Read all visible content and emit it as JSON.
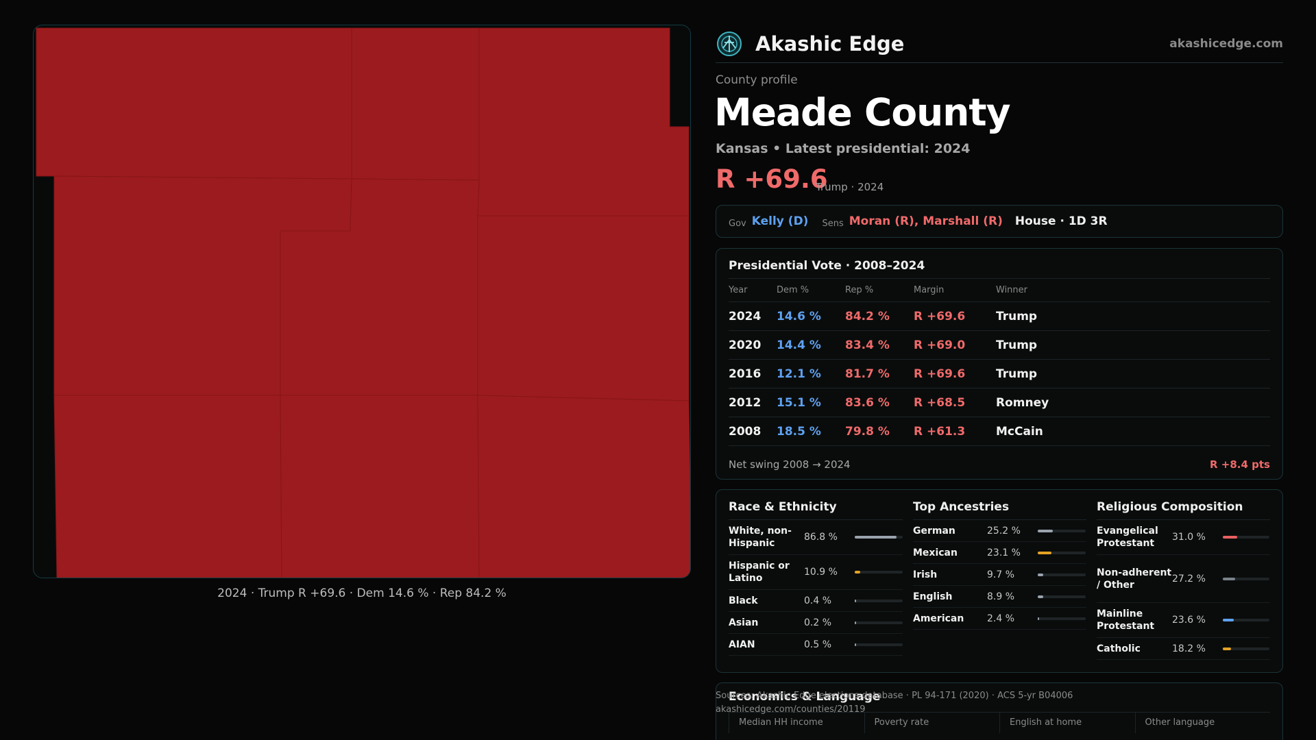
{
  "brand": {
    "name": "Akashic Edge",
    "url": "akashicedge.com",
    "logo_icon": "akashic-logo-icon"
  },
  "profile": {
    "label": "County profile",
    "county": "Meade County",
    "subtitle": "Kansas • Latest presidential: 2024",
    "margin": "R +69.6",
    "margin_note": "Trump · 2024"
  },
  "officials": {
    "gov_label": "Gov",
    "gov": "Kelly (D)",
    "sens_label": "Sens",
    "sens": "Moran (R), Marshall (R)",
    "house": "House · 1D 3R"
  },
  "presidential": {
    "title": "Presidential Vote · 2008–2024",
    "headers": {
      "year": "Year",
      "dem": "Dem %",
      "rep": "Rep %",
      "margin": "Margin",
      "winner": "Winner"
    },
    "rows": [
      {
        "year": "2024",
        "dem": "14.6 %",
        "rep": "84.2 %",
        "margin": "R +69.6",
        "winner": "Trump"
      },
      {
        "year": "2020",
        "dem": "14.4 %",
        "rep": "83.4 %",
        "margin": "R +69.0",
        "winner": "Trump"
      },
      {
        "year": "2016",
        "dem": "12.1 %",
        "rep": "81.7 %",
        "margin": "R +69.6",
        "winner": "Trump"
      },
      {
        "year": "2012",
        "dem": "15.1 %",
        "rep": "83.6 %",
        "margin": "R +68.5",
        "winner": "Romney"
      },
      {
        "year": "2008",
        "dem": "18.5 %",
        "rep": "79.8 %",
        "margin": "R +61.3",
        "winner": "McCain"
      }
    ],
    "swing_label": "Net swing 2008 → 2024",
    "swing_value": "R +8.4 pts"
  },
  "race": {
    "title": "Race & Ethnicity",
    "items": [
      {
        "label": "White, non-Hispanic",
        "value": "86.8 %",
        "pct": 86.8,
        "color": "#9aa3ad"
      },
      {
        "label": "Hispanic or Latino",
        "value": "10.9 %",
        "pct": 10.9,
        "color": "#e5a324"
      },
      {
        "label": "Black",
        "value": "0.4 %",
        "pct": 0.4,
        "color": "#9aa3ad"
      },
      {
        "label": "Asian",
        "value": "0.2 %",
        "pct": 0.2,
        "color": "#9aa3ad"
      },
      {
        "label": "AIAN",
        "value": "0.5 %",
        "pct": 0.5,
        "color": "#9aa3ad"
      }
    ]
  },
  "ancestry": {
    "title": "Top Ancestries",
    "items": [
      {
        "label": "German",
        "value": "25.2 %",
        "pct": 25.2,
        "color": "#9aa3ad"
      },
      {
        "label": "Mexican",
        "value": "23.1 %",
        "pct": 23.1,
        "color": "#e5a324"
      },
      {
        "label": "Irish",
        "value": "9.7 %",
        "pct": 9.7,
        "color": "#9aa3ad"
      },
      {
        "label": "English",
        "value": "8.9 %",
        "pct": 8.9,
        "color": "#9aa3ad"
      },
      {
        "label": "American",
        "value": "2.4 %",
        "pct": 2.4,
        "color": "#9aa3ad"
      }
    ]
  },
  "religion": {
    "title": "Religious Composition",
    "items": [
      {
        "label": "Evangelical Protestant",
        "value": "31.0 %",
        "pct": 31.0,
        "color": "#e86060"
      },
      {
        "label": "Non-adherent / Other",
        "value": "27.2 %",
        "pct": 27.2,
        "color": "#7a828a"
      },
      {
        "label": "Mainline Protestant",
        "value": "23.6 %",
        "pct": 23.6,
        "color": "#5ea1f0"
      },
      {
        "label": "Catholic",
        "value": "18.2 %",
        "pct": 18.2,
        "color": "#e5a324"
      }
    ]
  },
  "economics": {
    "title": "Economics & Language",
    "columns": [
      "Median HH income",
      "Poverty rate",
      "English at home",
      "Other language"
    ]
  },
  "sources": {
    "line1": "Sources: Akashic Edge elections database · PL 94-171 (2020) · ACS 5-yr B04006",
    "line2": "akashicedge.com/counties/20119"
  },
  "map": {
    "caption": "2024 · Trump R +69.6 · Dem 14.6 % · Rep 84.2 %",
    "fill_color": "#9c1b1e"
  }
}
